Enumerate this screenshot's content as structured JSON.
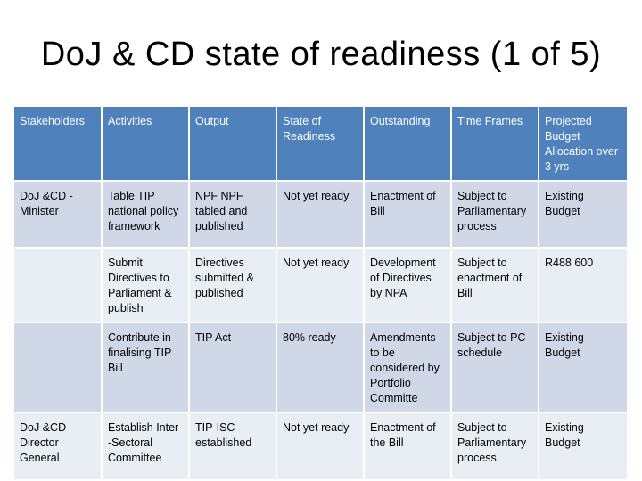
{
  "slide": {
    "title": "DoJ & CD state of readiness (1 of 5)"
  },
  "table": {
    "headers": [
      "Stakeholders",
      "Activities",
      "Output",
      "State of Readiness",
      "Outstanding",
      "Time Frames",
      "Projected Budget Allocation over 3 yrs"
    ],
    "rows": [
      [
        "DoJ &CD - Minister",
        "Table TIP national policy framework",
        "NPF NPF tabled and published",
        "Not yet ready",
        "Enactment of Bill",
        "Subject to Parliamentary process",
        "Existing Budget"
      ],
      [
        "",
        "Submit Directives to Parliament & publish",
        "Directives submitted & published",
        "Not yet ready",
        "Development of Directives by NPA",
        "Subject to enactment of Bill",
        "R488 600"
      ],
      [
        "",
        "Contribute in finalising TIP Bill",
        "TIP Act",
        "80% ready",
        "Amendments to be considered by Portfolio Committe",
        "Subject to PC schedule",
        "Existing Budget"
      ],
      [
        "DoJ &CD - Director General",
        "Establish Inter -Sectoral Committee",
        "TIP-ISC established",
        "Not yet ready",
        "Enactment of the Bill",
        "Subject to Parliamentary process",
        "Existing Budget"
      ]
    ]
  }
}
